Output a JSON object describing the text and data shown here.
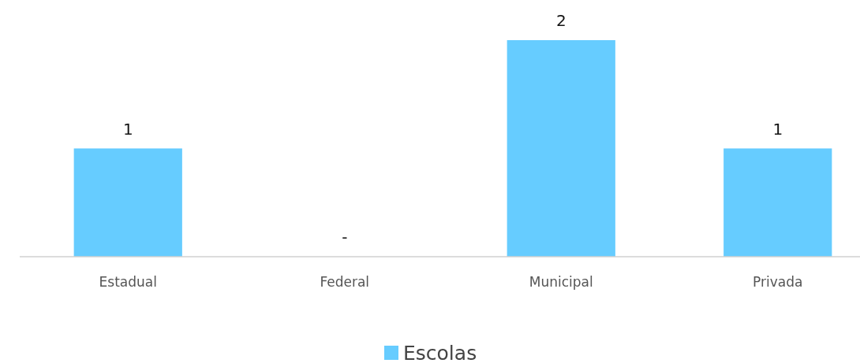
{
  "chart_data": {
    "type": "bar",
    "categories": [
      "Estadual",
      "Federal",
      "Municipal",
      "Privada"
    ],
    "series": [
      {
        "name": "Escolas",
        "color": "#66ccff",
        "values": [
          1,
          0,
          2,
          1
        ],
        "value_labels": [
          "1",
          "-",
          "2",
          "1"
        ]
      }
    ],
    "legend": "bottom"
  }
}
